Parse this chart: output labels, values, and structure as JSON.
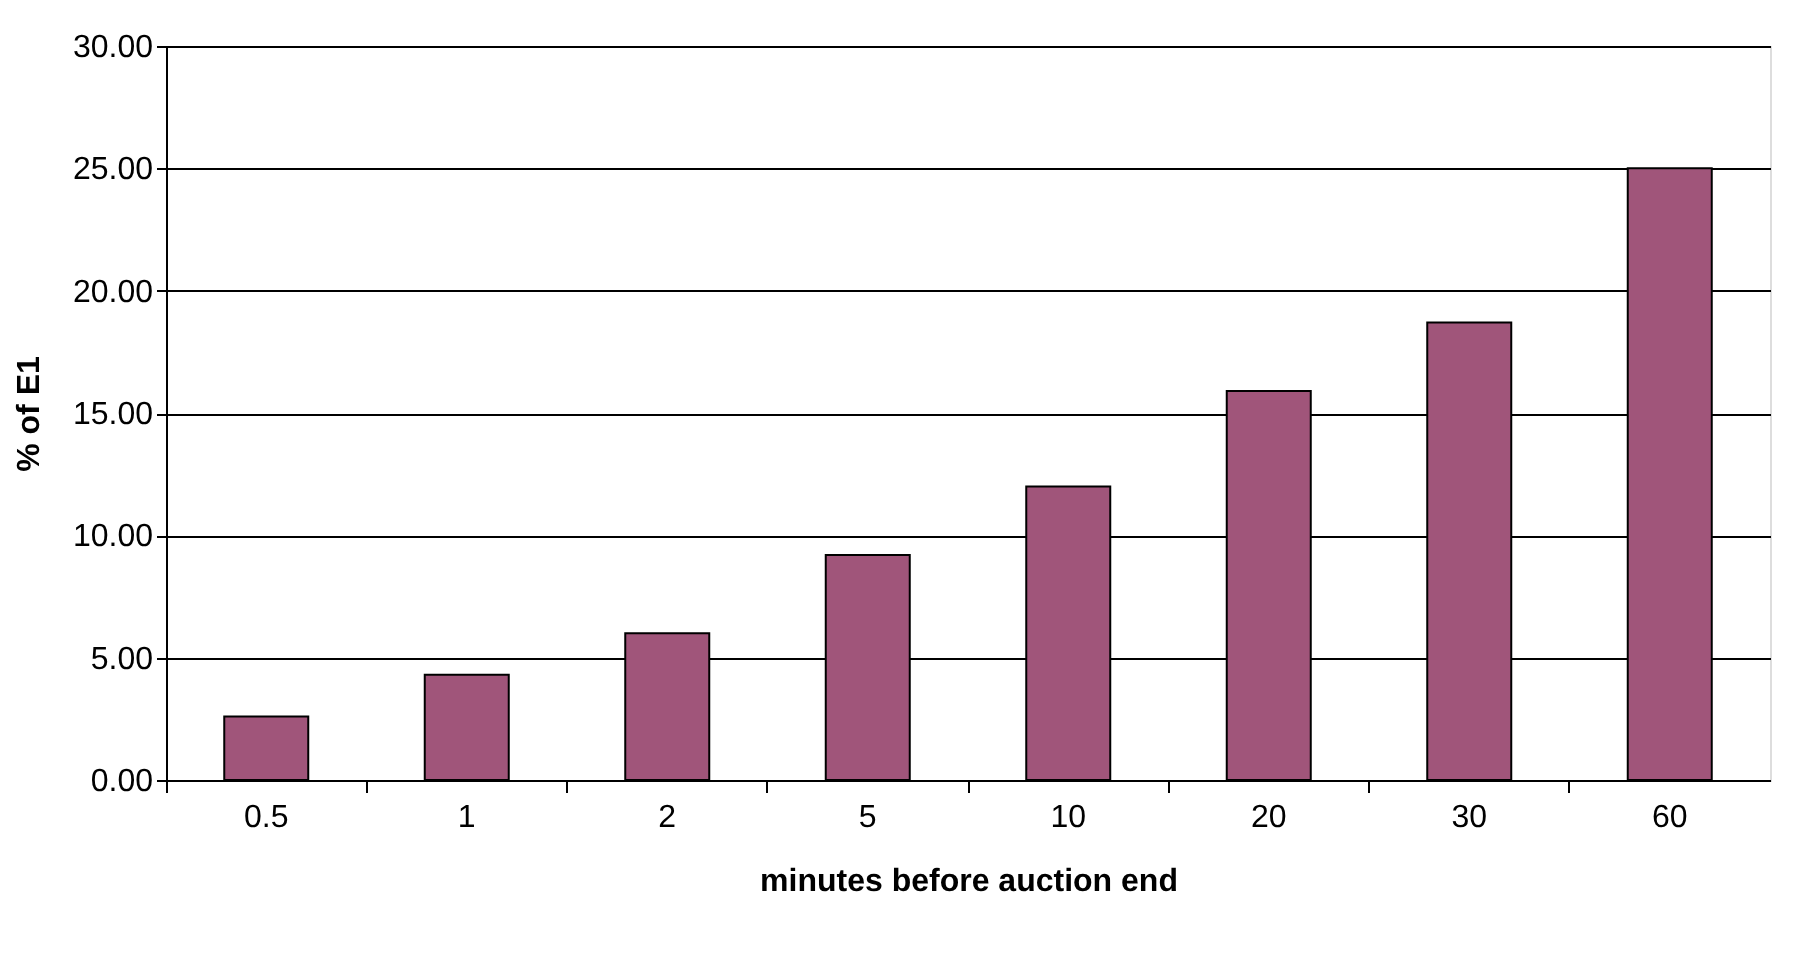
{
  "chart_data": {
    "type": "bar",
    "xlabel": "minutes before auction end",
    "ylabel": "% of E1",
    "categories": [
      "0.5",
      "1",
      "2",
      "5",
      "10",
      "20",
      "30",
      "60"
    ],
    "values": [
      2.6,
      4.3,
      6.0,
      9.2,
      12.0,
      15.9,
      18.7,
      25.0
    ],
    "color": "#a0557a",
    "ylim": [
      0,
      30
    ],
    "yticks": [
      {
        "value": 0,
        "label": "0.00"
      },
      {
        "value": 5,
        "label": "5.00"
      },
      {
        "value": 10,
        "label": "10.00"
      },
      {
        "value": 15,
        "label": "15.00"
      },
      {
        "value": 20,
        "label": "20.00"
      },
      {
        "value": 25,
        "label": "25.00"
      },
      {
        "value": 30,
        "label": "30.00"
      }
    ],
    "grid": "y"
  }
}
